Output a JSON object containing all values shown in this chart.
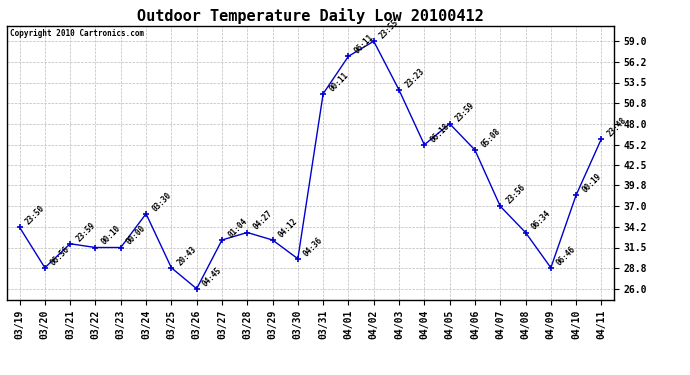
{
  "title": "Outdoor Temperature Daily Low 20100412",
  "copyright": "Copyright 2010 Cartronics.com",
  "x_labels": [
    "03/19",
    "03/20",
    "03/21",
    "03/22",
    "03/23",
    "03/24",
    "03/25",
    "03/26",
    "03/27",
    "03/28",
    "03/29",
    "03/30",
    "03/31",
    "04/01",
    "04/02",
    "04/03",
    "04/04",
    "04/05",
    "04/06",
    "04/07",
    "04/08",
    "04/09",
    "04/10",
    "04/11"
  ],
  "y_values": [
    34.2,
    28.8,
    32.0,
    31.5,
    31.5,
    36.0,
    28.8,
    26.0,
    32.5,
    33.5,
    32.5,
    30.0,
    52.0,
    57.0,
    59.0,
    52.5,
    45.2,
    48.0,
    44.5,
    37.0,
    33.5,
    28.8,
    38.5,
    46.0
  ],
  "time_labels": [
    "23:50",
    "06:56",
    "23:59",
    "00:10",
    "00:00",
    "03:30",
    "20:43",
    "04:45",
    "01:04",
    "04:27",
    "04:12",
    "04:36",
    "00:11",
    "06:11",
    "23:55",
    "23:23",
    "06:18",
    "23:59",
    "05:08",
    "23:56",
    "06:34",
    "06:46",
    "00:19",
    "23:48"
  ],
  "y_ticks": [
    26.0,
    28.8,
    31.5,
    34.2,
    37.0,
    39.8,
    42.5,
    45.2,
    48.0,
    50.8,
    53.5,
    56.2,
    59.0
  ],
  "ylim": [
    24.5,
    61.0
  ],
  "line_color": "#0000cc",
  "bg_color": "#ffffff",
  "grid_color": "#bbbbbb",
  "title_fontsize": 11,
  "tick_fontsize": 7,
  "label_fontsize": 5.5,
  "copyright_fontsize": 5.5
}
